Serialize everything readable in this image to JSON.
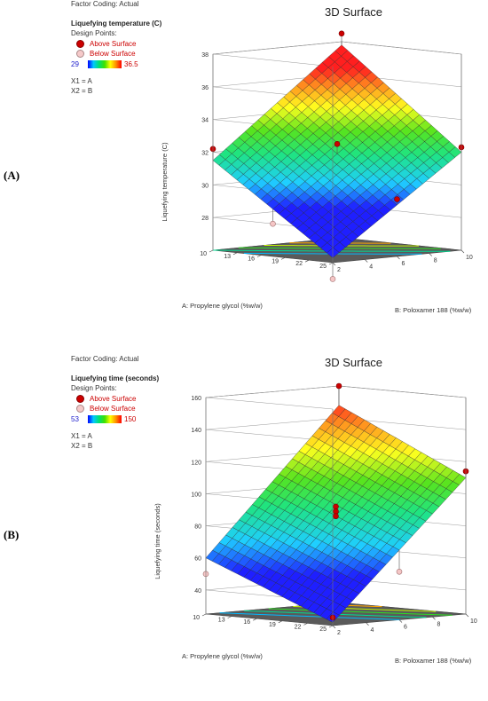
{
  "panels": [
    {
      "letter": "(A)",
      "title": "3D Surface",
      "factor_coding": "Factor Coding: Actual",
      "response_label": "Liquefying temperature (C)",
      "design_points_label": "Design Points:",
      "above_label": "Above Surface",
      "below_label": "Below Surface",
      "grad_min": "29",
      "grad_max": "36.5",
      "x1_map": "X1 = A",
      "x2_map": "X2 = B"
    },
    {
      "letter": "(B)",
      "title": "3D Surface",
      "factor_coding": "Factor Coding: Actual",
      "response_label": "Liquefying time (seconds)",
      "design_points_label": "Design Points:",
      "above_label": "Above Surface",
      "below_label": "Below Surface",
      "grad_min": "53",
      "grad_max": "150",
      "x1_map": "X1 = A",
      "x2_map": "X2 = B"
    }
  ],
  "chart_data": [
    {
      "type": "surface3d",
      "title": "3D Surface",
      "xlabel": "A: Propylene glycol (%w/w)",
      "ylabel": "B: Poloxamer 188 (%w/w)",
      "zlabel": "Liquefying temperature (C)",
      "a_ticks": [
        "10",
        "13",
        "16",
        "19",
        "22",
        "25"
      ],
      "b_ticks": [
        "2",
        "4",
        "6",
        "8",
        "10"
      ],
      "z_ticks": [
        "28",
        "30",
        "32",
        "34",
        "36",
        "38"
      ],
      "a_range": [
        10,
        25
      ],
      "b_range": [
        2,
        10
      ],
      "z_range": [
        26,
        38
      ],
      "color_range": [
        29,
        36.5
      ],
      "surface_corners": {
        "a10_b2": 31.5,
        "a25_b2": 26.3,
        "a10_b10": 37.8,
        "a25_b10": 32.0
      },
      "design_points": [
        {
          "a": 10,
          "b": 10,
          "z": 38.5,
          "position": "Above Surface"
        },
        {
          "a": 10,
          "b": 2,
          "z": 32.2,
          "position": "Above Surface"
        },
        {
          "a": 25,
          "b": 10,
          "z": 32.3,
          "position": "Above Surface"
        },
        {
          "a": 17.5,
          "b": 6,
          "z": 32.5,
          "position": "Above Surface"
        },
        {
          "a": 25,
          "b": 6,
          "z": 29.5,
          "position": "Above Surface"
        },
        {
          "a": 17.5,
          "b": 2,
          "z": 28.0,
          "position": "Below Surface"
        },
        {
          "a": 25,
          "b": 2,
          "z": 25.0,
          "position": "Below Surface"
        }
      ]
    },
    {
      "type": "surface3d",
      "title": "3D Surface",
      "xlabel": "A: Propylene glycol (%w/w)",
      "ylabel": "B: Poloxamer 188 (%w/w)",
      "zlabel": "Liquefying time (seconds)",
      "a_ticks": [
        "10",
        "13",
        "16",
        "19",
        "22",
        "25"
      ],
      "b_ticks": [
        "2",
        "4",
        "6",
        "8",
        "10"
      ],
      "z_ticks": [
        "40",
        "60",
        "80",
        "100",
        "120",
        "140",
        "160"
      ],
      "a_range": [
        10,
        25
      ],
      "b_range": [
        2,
        10
      ],
      "z_range": [
        25,
        160
      ],
      "color_range": [
        53,
        150
      ],
      "surface_corners": {
        "a10_b2": 60,
        "a25_b2": 27,
        "a10_b10": 148,
        "a25_b10": 110
      },
      "design_points": [
        {
          "a": 10,
          "b": 10,
          "z": 160,
          "position": "Above Surface"
        },
        {
          "a": 25,
          "b": 10,
          "z": 114,
          "position": "Above Surface"
        },
        {
          "a": 17.5,
          "b": 6,
          "z": 92,
          "position": "Above Surface"
        },
        {
          "a": 17.5,
          "b": 6,
          "z": 89,
          "position": "Above Surface"
        },
        {
          "a": 17.5,
          "b": 6,
          "z": 86,
          "position": "Above Surface"
        },
        {
          "a": 25,
          "b": 2,
          "z": 30,
          "position": "Above Surface"
        },
        {
          "a": 10,
          "b": 2,
          "z": 50,
          "position": "Below Surface"
        },
        {
          "a": 25,
          "b": 6,
          "z": 55,
          "position": "Below Surface"
        }
      ]
    }
  ]
}
